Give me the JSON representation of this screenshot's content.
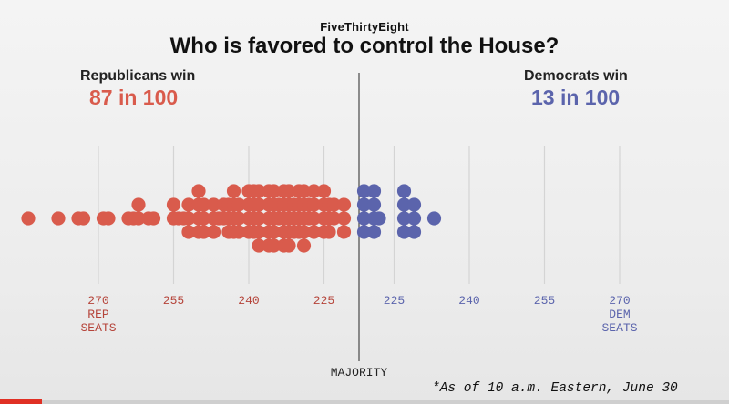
{
  "header": {
    "brand": "FiveThirtyEight",
    "title": "Who is favored to control the House?"
  },
  "sides": {
    "republican": {
      "label": "Republicans win",
      "probability": "87 in 100",
      "color": "#d95b4c"
    },
    "democrat": {
      "label": "Democrats win",
      "probability": "13 in 100",
      "color": "#5b64ac"
    }
  },
  "footnote": "*As of 10 a.m. Eastern, June 30",
  "chart_data": {
    "type": "scatter",
    "title": "Who is favored to control the House?",
    "majority_label": "MAJORITY",
    "rep_axis_label": [
      "REP",
      "SEATS"
    ],
    "dem_axis_label": [
      "DEM",
      "SEATS"
    ],
    "tick_labels": [
      "270",
      "255",
      "240",
      "225",
      "225",
      "240",
      "255",
      "270"
    ],
    "rep_tick_color": "#b5443a",
    "dem_tick_color": "#5b64ac",
    "grid": true,
    "series": [
      {
        "party": "Republican",
        "color": "#d95b4c",
        "rep_seats": [
          284,
          278,
          274,
          273,
          269,
          268,
          264,
          263,
          262,
          262,
          260,
          259,
          255,
          255,
          254,
          253,
          252,
          252,
          252,
          250,
          250,
          250,
          250,
          249,
          249,
          249,
          247,
          247,
          247,
          246,
          245,
          245,
          244,
          244,
          244,
          243,
          243,
          243,
          243,
          242,
          242,
          242,
          240,
          240,
          240,
          240,
          239,
          239,
          239,
          239,
          238,
          238,
          238,
          238,
          238,
          236,
          236,
          236,
          236,
          236,
          235,
          235,
          235,
          235,
          235,
          234,
          234,
          233,
          233,
          233,
          233,
          233,
          232,
          232,
          232,
          232,
          232,
          231,
          231,
          231,
          230,
          230,
          230,
          230,
          229,
          229,
          229,
          229,
          229,
          228,
          228,
          227,
          227,
          227,
          227,
          225,
          225,
          225,
          225,
          224,
          224,
          224,
          223,
          223,
          221,
          221,
          221
        ]
      },
      {
        "party": "Democrat",
        "color": "#5b64ac",
        "dem_seats": [
          219,
          219,
          219,
          219,
          221,
          221,
          221,
          221,
          222,
          227,
          227,
          227,
          227,
          229,
          229,
          229,
          233
        ]
      }
    ]
  }
}
